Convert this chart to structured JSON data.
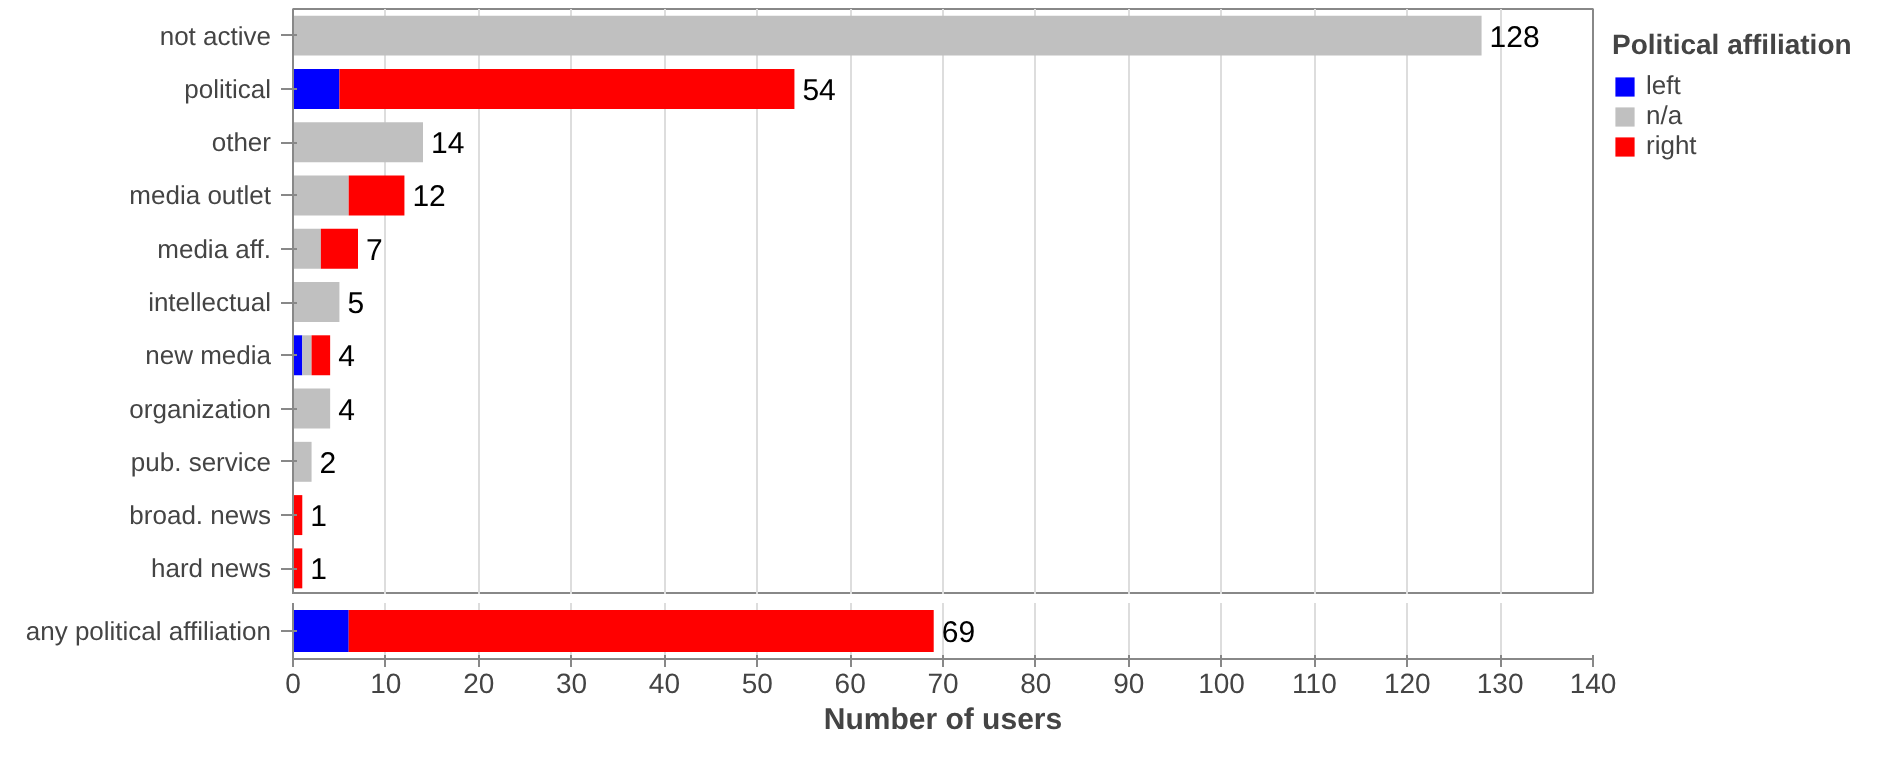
{
  "chart_data": [
    {
      "type": "bar",
      "orientation": "horizontal",
      "stacked": true,
      "categories": [
        "not active",
        "political",
        "other",
        "media outlet",
        "media aff.",
        "intellectual",
        "new media",
        "organization",
        "pub. service",
        "broad. news",
        "hard news"
      ],
      "legend_title": "Political affiliation",
      "legend": "top right",
      "grid": "x",
      "xlim": [
        0,
        140
      ],
      "xticks": [
        0,
        10,
        20,
        30,
        40,
        50,
        60,
        70,
        80,
        90,
        100,
        110,
        120,
        130,
        140
      ],
      "tick_labels": "y",
      "series": [
        {
          "name": "left",
          "color": "#0000ff",
          "values": [
            null,
            5,
            null,
            null,
            null,
            null,
            1,
            null,
            null,
            null,
            null
          ]
        },
        {
          "name": "n/a",
          "color": "#c0c0c0",
          "values": [
            128,
            null,
            14,
            6,
            3,
            5,
            1,
            4,
            2,
            null,
            null
          ]
        },
        {
          "name": "right",
          "color": "#ff0000",
          "values": [
            null,
            49,
            null,
            6,
            4,
            null,
            2,
            null,
            null,
            1,
            1
          ]
        }
      ],
      "totals": [
        "128",
        "54",
        "14",
        "12",
        "7",
        "5",
        "4",
        "4",
        "2",
        "1",
        "1"
      ]
    },
    {
      "type": "bar",
      "orientation": "horizontal",
      "stacked": true,
      "categories": [
        "any political affiliation"
      ],
      "xlabel": "Number of users",
      "grid": "x",
      "xlim": [
        0,
        140
      ],
      "xticks": [
        0,
        10,
        20,
        30,
        40,
        50,
        60,
        70,
        80,
        90,
        100,
        110,
        120,
        130,
        140
      ],
      "series": [
        {
          "color": "#0000ff",
          "values": [
            6
          ]
        },
        {
          "color": "#ff0000",
          "values": [
            63
          ]
        }
      ],
      "totals": [
        "69"
      ]
    }
  ]
}
